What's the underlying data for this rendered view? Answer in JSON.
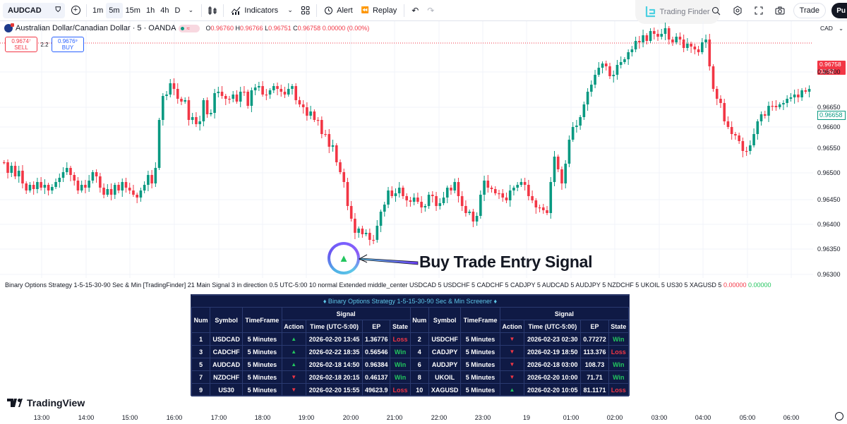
{
  "toolbar": {
    "symbol": "AUDCAD",
    "timeframes": [
      "1m",
      "5m",
      "15m",
      "1h",
      "4h",
      "D"
    ],
    "active_timeframe": "5m",
    "indicators_label": "Indicators",
    "alert_label": "Alert",
    "replay_label": "Replay",
    "brand_label": "Trading Finder",
    "trade_label": "Trade",
    "publish_label": "Pu"
  },
  "legend": {
    "title": "Australian Dollar/Canadian Dollar · 5 · OANDA",
    "open": "0.96760",
    "high": "0.96766",
    "low": "0.96751",
    "close": "0.96758",
    "change": "0.00000 (0.00%)",
    "sell_price": "0.9674⁷",
    "sell_label": "SELL",
    "spread": "2.2",
    "buy_price": "0.9676⁹",
    "buy_label": "BUY"
  },
  "price_axis": {
    "currency": "CAD",
    "current_price": "0.96758",
    "countdown": "00:52",
    "marker_price": "0.96658",
    "labels": [
      "0.96700",
      "0.96650",
      "0.96600",
      "0.96550",
      "0.96500",
      "0.96450",
      "0.96400",
      "0.96350",
      "0.96300"
    ]
  },
  "annotation": {
    "text": "Buy Trade Entry Signal",
    "glyph": "▲"
  },
  "indicator_line": {
    "text": "Binary Options Strategy 1-5-15-30-90 Sec & Min [TradingFinder] 21 Main Signal 3 in direction 0.5 UTC-5:00 10 normal Extended middle_center USDCAD 5 USDCHF 5 CADCHF 5 CADJPY 5 AUDCAD 5 AUDJPY 5 NZDCHF 5 UKOIL 5 US30 5 XAGUSD 5",
    "value_red": "0.00000",
    "value_green": "0.00000"
  },
  "screener": {
    "title": "♦ Binary Options Strategy 1-5-15-30-90 Sec & Min Screener ♦",
    "headers": {
      "num": "Num",
      "symbol": "Symbol",
      "timeframe": "TimeFrame",
      "signal": "Signal",
      "action": "Action",
      "time": "Time (UTC-5:00)",
      "ep": "EP",
      "state": "State"
    },
    "rows": [
      {
        "left": {
          "num": "1",
          "symbol": "USDCAD",
          "tf": "5 Minutes",
          "action": "up",
          "time": "2026-02-20 13:45",
          "ep": "1.36776",
          "state": "Loss"
        },
        "right": {
          "num": "2",
          "symbol": "USDCHF",
          "tf": "5 Minutes",
          "action": "down",
          "time": "2026-02-23 02:30",
          "ep": "0.77272",
          "state": "Win"
        }
      },
      {
        "left": {
          "num": "3",
          "symbol": "CADCHF",
          "tf": "5 Minutes",
          "action": "up",
          "time": "2026-02-22 18:35",
          "ep": "0.56546",
          "state": "Win"
        },
        "right": {
          "num": "4",
          "symbol": "CADJPY",
          "tf": "5 Minutes",
          "action": "down",
          "time": "2026-02-19 18:50",
          "ep": "113.376",
          "state": "Loss"
        }
      },
      {
        "left": {
          "num": "5",
          "symbol": "AUDCAD",
          "tf": "5 Minutes",
          "action": "up",
          "time": "2026-02-18 14:50",
          "ep": "0.96384",
          "state": "Win"
        },
        "right": {
          "num": "6",
          "symbol": "AUDJPY",
          "tf": "5 Minutes",
          "action": "down",
          "time": "2026-02-18 03:00",
          "ep": "108.73",
          "state": "Win"
        }
      },
      {
        "left": {
          "num": "7",
          "symbol": "NZDCHF",
          "tf": "5 Minutes",
          "action": "down",
          "time": "2026-02-18 20:15",
          "ep": "0.46137",
          "state": "Win"
        },
        "right": {
          "num": "8",
          "symbol": "UKOIL",
          "tf": "5 Minutes",
          "action": "down",
          "time": "2026-02-20 10:00",
          "ep": "71.71",
          "state": "Win"
        }
      },
      {
        "left": {
          "num": "9",
          "symbol": "US30",
          "tf": "5 Minutes",
          "action": "down",
          "time": "2026-02-20 15:55",
          "ep": "49623.9",
          "state": "Loss"
        },
        "right": {
          "num": "10",
          "symbol": "XAGUSD",
          "tf": "5 Minutes",
          "action": "up",
          "time": "2026-02-20 10:05",
          "ep": "81.1171",
          "state": "Loss"
        }
      }
    ]
  },
  "time_axis": {
    "labels": [
      "13:00",
      "14:00",
      "15:00",
      "16:00",
      "17:00",
      "18:00",
      "19:00",
      "20:00",
      "21:00",
      "22:00",
      "23:00",
      "19",
      "01:00",
      "02:00",
      "03:00",
      "04:00",
      "05:00",
      "06:00"
    ]
  },
  "footer": {
    "logo_text": "TradingView"
  },
  "colors": {
    "up": "#089981",
    "down": "#f23645",
    "table_bg": "#0f1a45",
    "title_cyan": "#5ec7e8"
  }
}
